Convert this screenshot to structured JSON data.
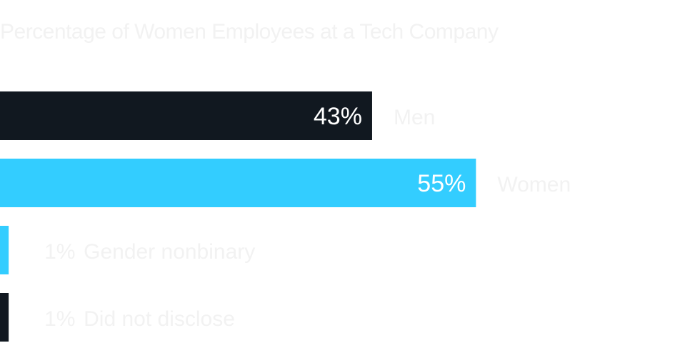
{
  "chart_data": {
    "type": "bar",
    "orientation": "horizontal",
    "title": "Percentage of Women Employees at a Tech Company",
    "xlabel": "",
    "ylabel": "",
    "xlim": [
      0,
      78
    ],
    "grid": false,
    "legend": "none",
    "categories": [
      "Men",
      "Women",
      "Gender nonbinary",
      "Did not disclose"
    ],
    "values": [
      43,
      55,
      1,
      1
    ],
    "value_labels": [
      "43%",
      "55%",
      "1%",
      "1%"
    ],
    "colors": [
      "#111820",
      "#33cdff",
      "#33cdff",
      "#111820"
    ],
    "value_label_color": "#ffffff",
    "category_label_color": "#f2f2f2"
  }
}
